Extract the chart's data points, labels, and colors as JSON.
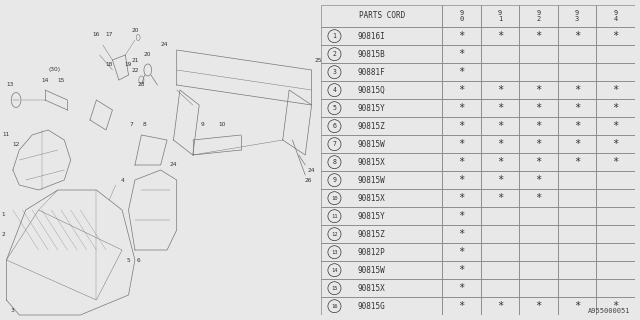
{
  "watermark": "A955000051",
  "bg_color": "#e8e8e8",
  "table_bg": "#ffffff",
  "rows": [
    {
      "num": 1,
      "code": "90816I",
      "marks": [
        1,
        1,
        1,
        1,
        1
      ]
    },
    {
      "num": 2,
      "code": "90815B",
      "marks": [
        1,
        0,
        0,
        0,
        0
      ]
    },
    {
      "num": 3,
      "code": "90881F",
      "marks": [
        1,
        0,
        0,
        0,
        0
      ]
    },
    {
      "num": 4,
      "code": "90815Q",
      "marks": [
        1,
        1,
        1,
        1,
        1
      ]
    },
    {
      "num": 5,
      "code": "90815Y",
      "marks": [
        1,
        1,
        1,
        1,
        1
      ]
    },
    {
      "num": 6,
      "code": "90815Z",
      "marks": [
        1,
        1,
        1,
        1,
        1
      ]
    },
    {
      "num": 7,
      "code": "90815W",
      "marks": [
        1,
        1,
        1,
        1,
        1
      ]
    },
    {
      "num": 8,
      "code": "90815X",
      "marks": [
        1,
        1,
        1,
        1,
        1
      ]
    },
    {
      "num": 9,
      "code": "90815W",
      "marks": [
        1,
        1,
        1,
        0,
        0
      ]
    },
    {
      "num": 10,
      "code": "90815X",
      "marks": [
        1,
        1,
        1,
        0,
        0
      ]
    },
    {
      "num": 11,
      "code": "90815Y",
      "marks": [
        1,
        0,
        0,
        0,
        0
      ]
    },
    {
      "num": 12,
      "code": "90815Z",
      "marks": [
        1,
        0,
        0,
        0,
        0
      ]
    },
    {
      "num": 13,
      "code": "90812P",
      "marks": [
        1,
        0,
        0,
        0,
        0
      ]
    },
    {
      "num": 14,
      "code": "90815W",
      "marks": [
        1,
        0,
        0,
        0,
        0
      ]
    },
    {
      "num": 15,
      "code": "90815X",
      "marks": [
        1,
        0,
        0,
        0,
        0
      ]
    },
    {
      "num": 16,
      "code": "90815G",
      "marks": [
        1,
        1,
        1,
        1,
        1
      ]
    }
  ],
  "line_color": "#555555",
  "text_color": "#333333",
  "table_line_color": "#888888",
  "diag_color": "#777777",
  "font_size": 5.5
}
